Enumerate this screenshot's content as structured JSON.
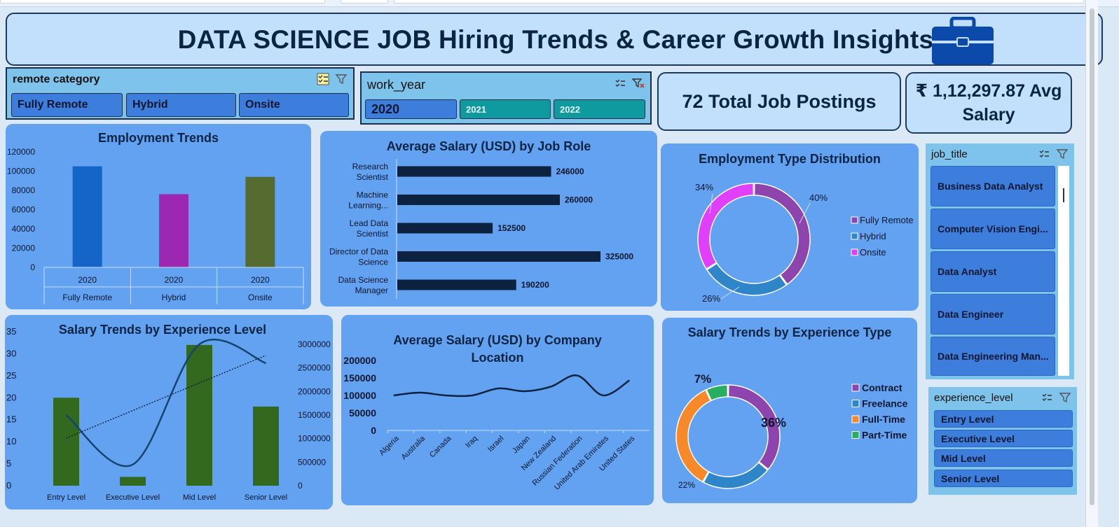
{
  "header": {
    "title": "DATA SCIENCE JOB Hiring Trends & Career Growth Insights",
    "icon": "briefcase-icon"
  },
  "slicers": {
    "remote_category": {
      "label": "remote category",
      "options": [
        "Fully Remote",
        "Hybrid",
        "Onsite"
      ]
    },
    "work_year": {
      "label": "work_year",
      "options": [
        "2020",
        "2021",
        "2022"
      ],
      "selected": "2020"
    },
    "job_title": {
      "label": "job_title",
      "options": [
        "Business Data Analyst",
        "Computer Vision Engi...",
        "Data Analyst",
        "Data Engineer",
        "Data Engineering Man..."
      ]
    },
    "experience_level": {
      "label": "experience_level",
      "options": [
        "Entry Level",
        "Executive Level",
        "Mid Level",
        "Senior Level"
      ]
    }
  },
  "kpis": {
    "total_postings": "72 Total Job Postings",
    "avg_salary_line1": "₹ 1,12,297.87 Avg",
    "avg_salary_line2": "Salary"
  },
  "colors": {
    "panel_bg": "#62a2f0",
    "banner_bg": "#c2e0fb",
    "fully_remote": "#1565c8",
    "hybrid": "#9c27b0",
    "onsite": "#556b2f",
    "bar_dark": "#0c2240",
    "green_bar": "#33691e",
    "donut_purple": "#8e44ad",
    "donut_blue": "#2e86c8",
    "donut_pink": "#e040fb",
    "donut_orange": "#f7892b",
    "donut_green": "#27ae60"
  },
  "chart_data": [
    {
      "type": "bar",
      "title": "Employment Trends",
      "categories": [
        "Fully Remote",
        "Hybrid",
        "Onsite"
      ],
      "sub_categories": [
        "2020",
        "2020",
        "2020"
      ],
      "values": [
        105000,
        76000,
        94000
      ],
      "yticks": [
        "0",
        "20000",
        "40000",
        "60000",
        "80000",
        "100000",
        "120000"
      ],
      "ylim": [
        0,
        120000
      ]
    },
    {
      "type": "bar",
      "orientation": "horizontal",
      "title": "Average Salary (USD) by Job Role",
      "categories": [
        [
          "Research",
          "Scientist"
        ],
        [
          "Machine",
          "Learning..."
        ],
        [
          "Lead Data",
          "Scientist"
        ],
        [
          "Director of Data",
          "Science"
        ],
        [
          "Data Science",
          "Manager"
        ]
      ],
      "values": [
        246000,
        260000,
        152500,
        325000,
        190200
      ],
      "value_labels": [
        "246000",
        "260000",
        "152500",
        "325000",
        "190200"
      ]
    },
    {
      "type": "pie",
      "variant": "donut",
      "title": "Employment Type Distribution",
      "labels": [
        "Fully Remote",
        "Hybrid",
        "Onsite"
      ],
      "values": [
        40,
        26,
        34
      ],
      "value_labels": [
        "40%",
        "26%",
        "34%"
      ],
      "legend": "right"
    },
    {
      "type": "bar",
      "combo": "bar+line",
      "title": "Salary Trends by  Experience Level",
      "categories": [
        "Entry Level",
        "Executive Level",
        "Mid Level",
        "Senior Level"
      ],
      "bar_values": [
        20,
        2,
        32,
        18
      ],
      "line_values": [
        1500000,
        450000,
        3000000,
        2600000
      ],
      "trendline": "linear",
      "yticks_left": [
        "0",
        "5",
        "10",
        "15",
        "20",
        "25",
        "30",
        "35"
      ],
      "yticks_right": [
        "0",
        "500000",
        "1000000",
        "1500000",
        "2000000",
        "2500000",
        "3000000"
      ],
      "ylim_left": [
        0,
        35
      ],
      "ylim_right": [
        0,
        3000000
      ]
    },
    {
      "type": "line",
      "title": [
        "Average Salary (USD) by Company",
        "Location"
      ],
      "categories": [
        "Algeria",
        "Australia",
        "Canada",
        "Iraq",
        "Israel",
        "Japan",
        "New Zealand",
        "Russian Federation",
        "United Arab Emirates",
        "United States"
      ],
      "values": [
        100000,
        108000,
        100000,
        100000,
        120000,
        112000,
        125000,
        157000,
        100000,
        143000
      ],
      "yticks": [
        "0",
        "50000",
        "100000",
        "150000",
        "200000"
      ],
      "ylim": [
        0,
        200000
      ]
    },
    {
      "type": "pie",
      "variant": "donut",
      "title": "Salary Trends by Experience Type",
      "labels": [
        "Contract",
        "Freelance",
        "Full-Time",
        "Part-Time"
      ],
      "values": [
        36,
        22,
        35,
        7
      ],
      "value_labels": [
        "36%",
        "22%",
        "35%",
        "7%"
      ],
      "legend": "right"
    }
  ]
}
